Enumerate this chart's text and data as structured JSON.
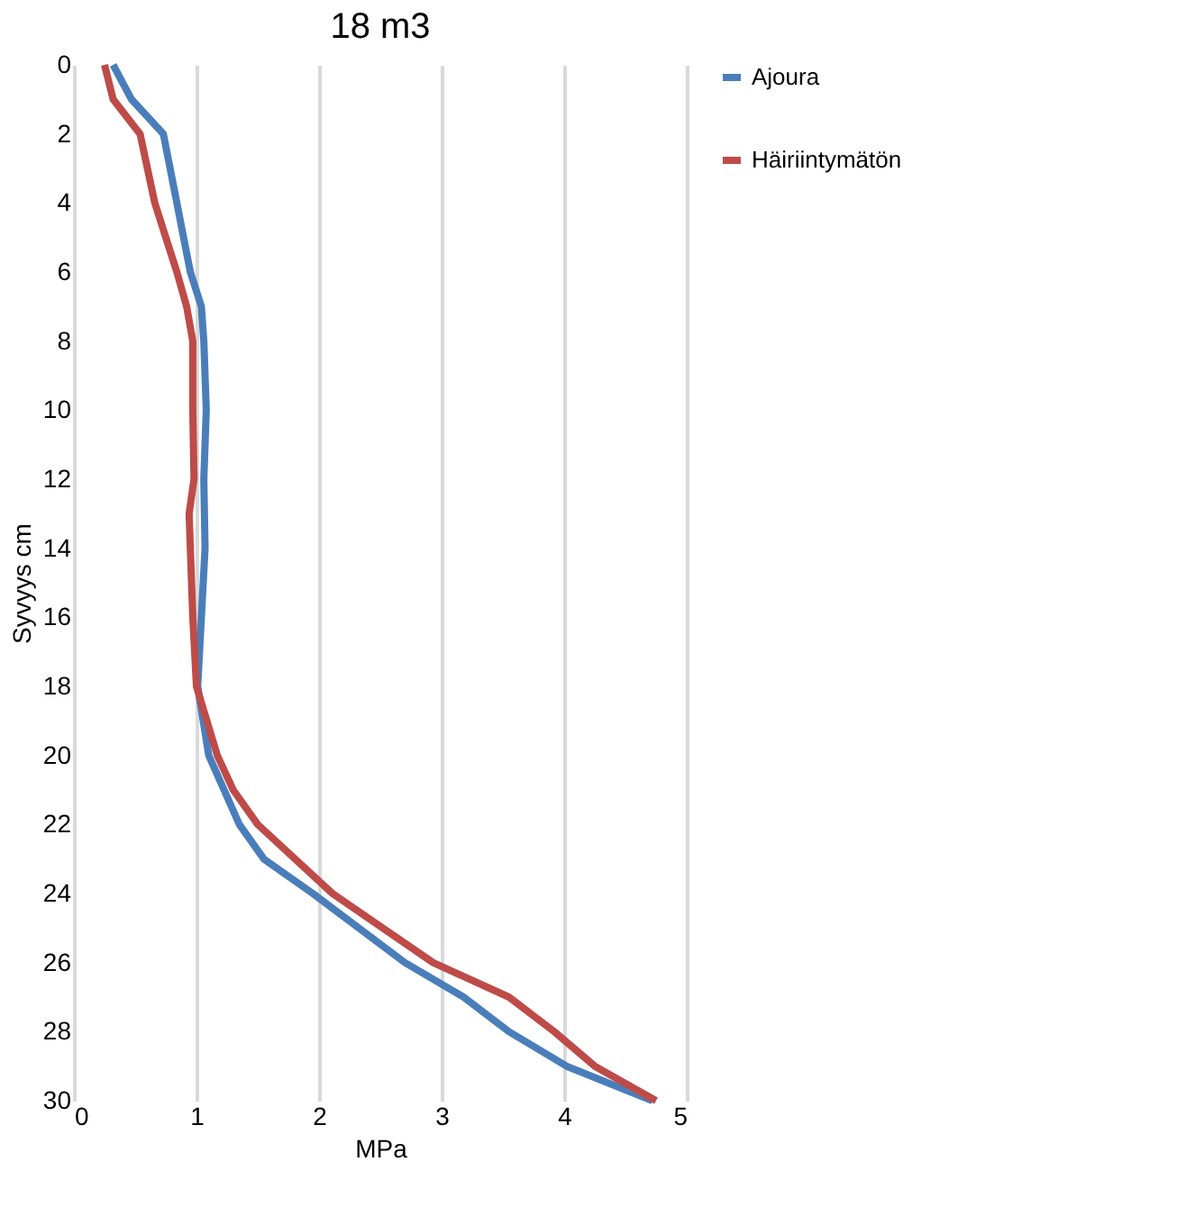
{
  "chart_data": {
    "type": "line",
    "title": "18 m3",
    "xlabel": "MPa",
    "ylabel": "Syvyys cm",
    "xlim": [
      0,
      5
    ],
    "xticks": [
      0,
      1,
      2,
      3,
      4,
      5
    ],
    "ylim": [
      30,
      0
    ],
    "yticks": [
      0,
      2,
      4,
      6,
      8,
      10,
      12,
      14,
      16,
      18,
      20,
      22,
      24,
      26,
      28,
      30
    ],
    "grid": "x",
    "legend": "right",
    "series": [
      {
        "name": "Ajoura",
        "color": "#4a7ebb",
        "x": [
          0.32,
          0.47,
          0.73,
          0.84,
          0.95,
          1.04,
          1.06,
          1.08,
          1.06,
          1.07,
          1.04,
          1.01,
          1.1,
          1.35,
          1.55,
          1.95,
          2.7,
          3.18,
          3.55,
          4.02,
          4.72
        ],
        "values": [
          0,
          1,
          2,
          4,
          6,
          7,
          8,
          10,
          12,
          14,
          16,
          18,
          20,
          22,
          23,
          24,
          26,
          27,
          28,
          29,
          30
        ]
      },
      {
        "name": "Häiriintymätön",
        "color": "#be4b48",
        "x": [
          0.25,
          0.32,
          0.54,
          0.66,
          0.84,
          0.92,
          0.97,
          0.97,
          0.98,
          0.94,
          0.97,
          1.0,
          1.17,
          1.3,
          1.5,
          2.11,
          2.93,
          3.55,
          3.92,
          4.25,
          4.75
        ],
        "values": [
          0,
          1,
          2,
          4,
          6,
          7,
          8,
          10,
          12,
          13,
          16,
          18,
          20,
          21,
          22,
          24,
          26,
          27,
          28,
          29,
          30
        ]
      }
    ]
  }
}
